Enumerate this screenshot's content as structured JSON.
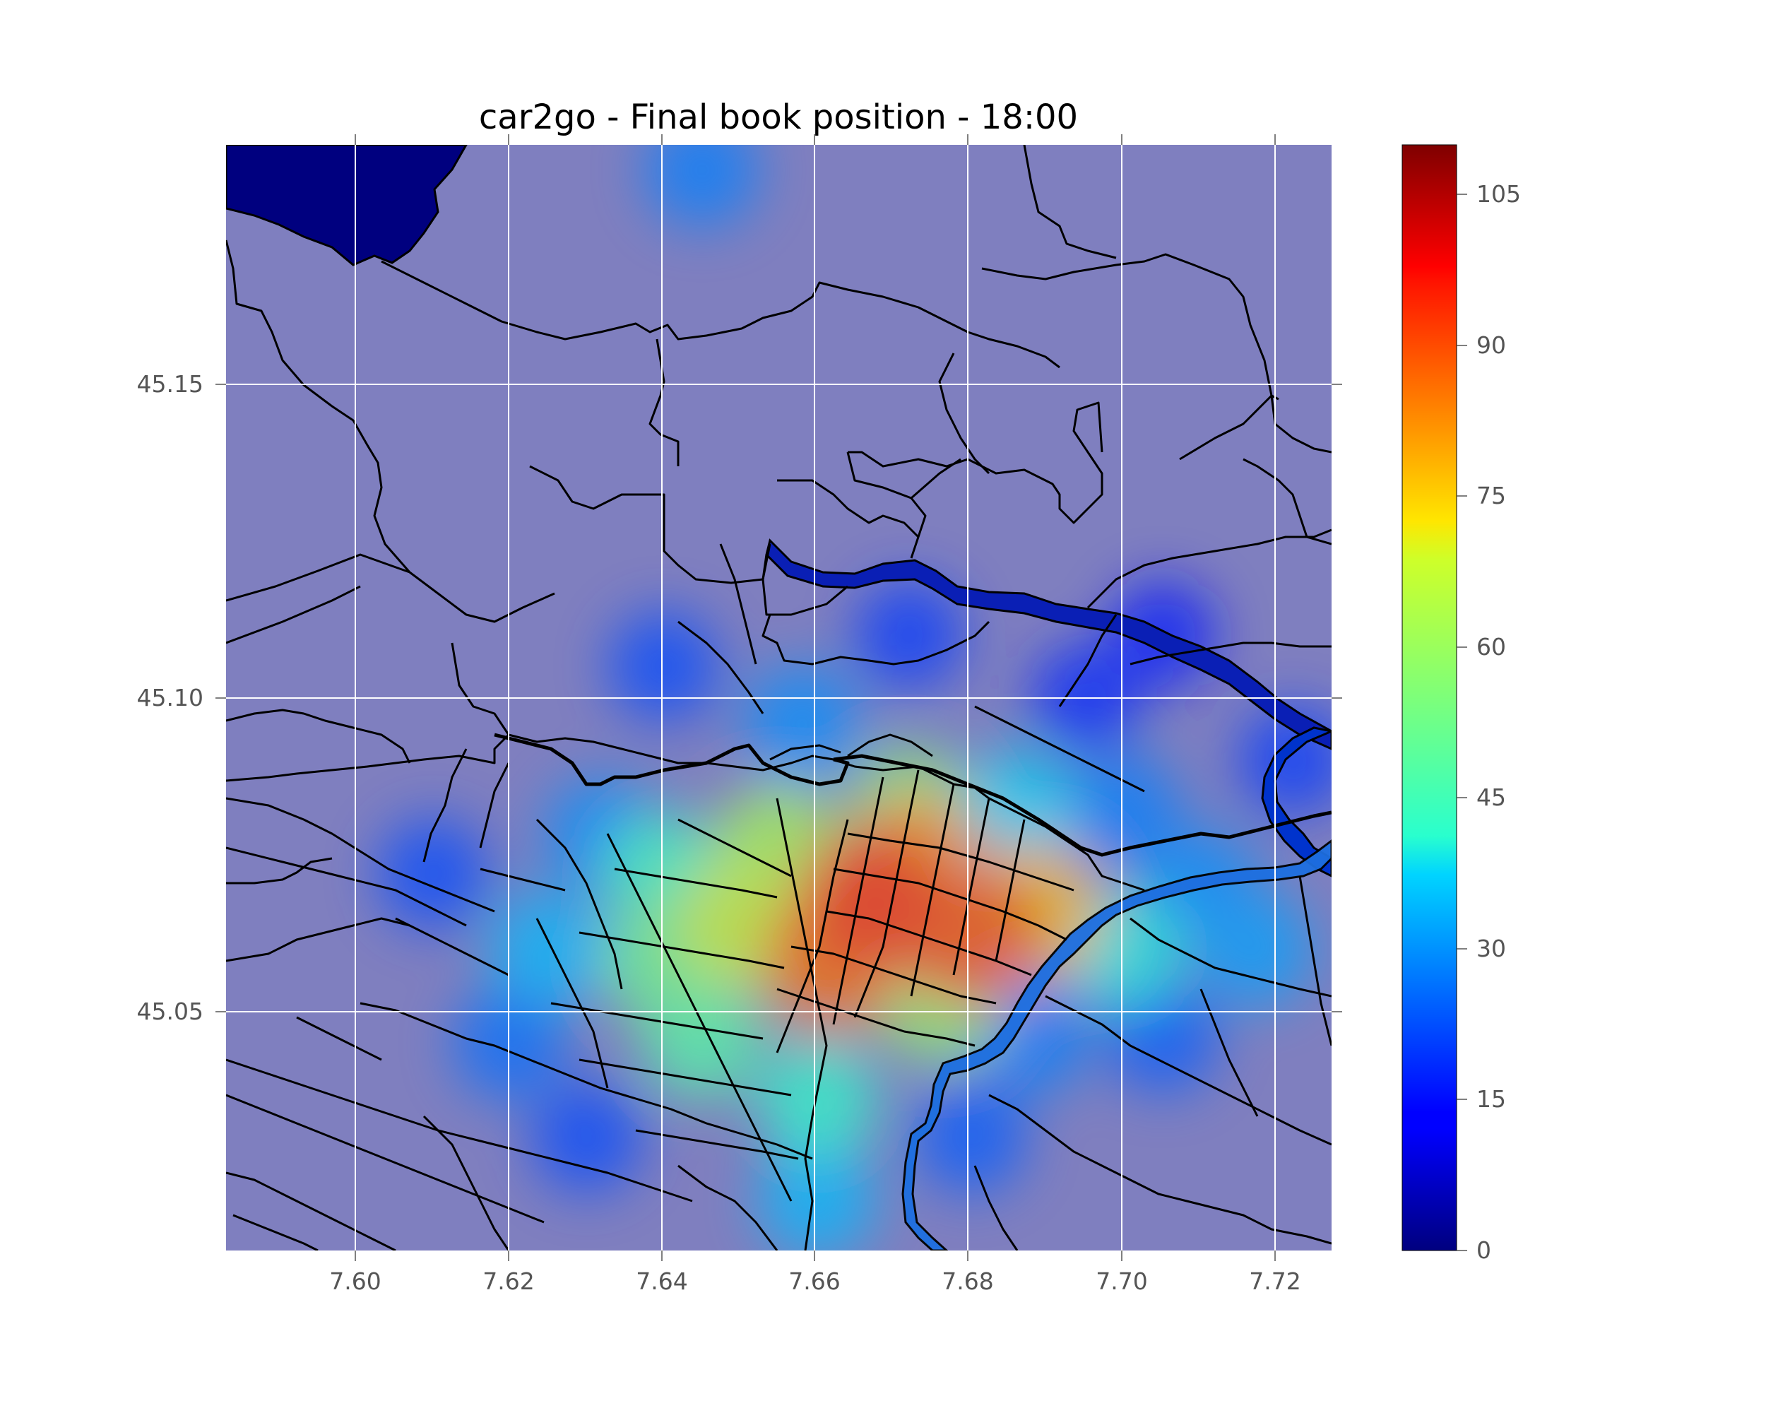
{
  "chart_data": {
    "type": "heatmap",
    "title": "car2go - Final book position - 18:00",
    "xlabel": "",
    "ylabel": "",
    "xlim": [
      7.583,
      7.727
    ],
    "ylim": [
      45.012,
      45.188
    ],
    "xticks": [
      7.6,
      7.62,
      7.64,
      7.66,
      7.68,
      7.7,
      7.72
    ],
    "xtick_labels": [
      "7.60",
      "7.62",
      "7.64",
      "7.66",
      "7.68",
      "7.70",
      "7.72"
    ],
    "yticks": [
      45.05,
      45.1,
      45.15
    ],
    "ytick_labels": [
      "45.05",
      "45.10",
      "45.15"
    ],
    "grid": true,
    "colormap": "jet",
    "colorbar": {
      "min": 0,
      "max": 110,
      "ticks": [
        0,
        15,
        30,
        45,
        60,
        75,
        90,
        105
      ],
      "tick_labels": [
        "0",
        "15",
        "30",
        "45",
        "60",
        "75",
        "90",
        "105"
      ]
    },
    "hotspots": [
      {
        "lon": 7.667,
        "lat": 45.068,
        "value": 92
      },
      {
        "lon": 7.68,
        "lat": 45.062,
        "value": 88
      },
      {
        "lon": 7.662,
        "lat": 45.058,
        "value": 85
      },
      {
        "lon": 7.673,
        "lat": 45.074,
        "value": 80
      },
      {
        "lon": 7.688,
        "lat": 45.066,
        "value": 76
      },
      {
        "lon": 7.65,
        "lat": 45.064,
        "value": 68
      },
      {
        "lon": 7.655,
        "lat": 45.076,
        "value": 62
      },
      {
        "lon": 7.672,
        "lat": 45.082,
        "value": 55
      },
      {
        "lon": 7.676,
        "lat": 45.052,
        "value": 58
      },
      {
        "lon": 7.64,
        "lat": 45.058,
        "value": 52
      },
      {
        "lon": 7.645,
        "lat": 45.046,
        "value": 48
      },
      {
        "lon": 7.66,
        "lat": 45.036,
        "value": 42
      },
      {
        "lon": 7.64,
        "lat": 45.072,
        "value": 44
      },
      {
        "lon": 7.7,
        "lat": 45.06,
        "value": 40
      },
      {
        "lon": 7.686,
        "lat": 45.082,
        "value": 38
      },
      {
        "lon": 7.625,
        "lat": 45.06,
        "value": 35
      },
      {
        "lon": 7.632,
        "lat": 45.078,
        "value": 30
      },
      {
        "lon": 7.658,
        "lat": 45.096,
        "value": 30
      },
      {
        "lon": 7.7,
        "lat": 45.082,
        "value": 28
      },
      {
        "lon": 7.71,
        "lat": 45.07,
        "value": 30
      },
      {
        "lon": 7.717,
        "lat": 45.06,
        "value": 32
      },
      {
        "lon": 7.66,
        "lat": 45.02,
        "value": 35
      },
      {
        "lon": 7.62,
        "lat": 45.045,
        "value": 26
      },
      {
        "lon": 7.688,
        "lat": 45.046,
        "value": 28
      },
      {
        "lon": 7.705,
        "lat": 45.046,
        "value": 24
      },
      {
        "lon": 7.645,
        "lat": 45.184,
        "value": 28
      },
      {
        "lon": 7.61,
        "lat": 45.072,
        "value": 22
      },
      {
        "lon": 7.64,
        "lat": 45.105,
        "value": 22
      },
      {
        "lon": 7.672,
        "lat": 45.11,
        "value": 20
      },
      {
        "lon": 7.722,
        "lat": 45.09,
        "value": 20
      },
      {
        "lon": 7.63,
        "lat": 45.03,
        "value": 22
      },
      {
        "lon": 7.68,
        "lat": 45.03,
        "value": 24
      },
      {
        "lon": 7.695,
        "lat": 45.1,
        "value": 18
      },
      {
        "lon": 7.705,
        "lat": 45.11,
        "value": 16
      }
    ]
  }
}
